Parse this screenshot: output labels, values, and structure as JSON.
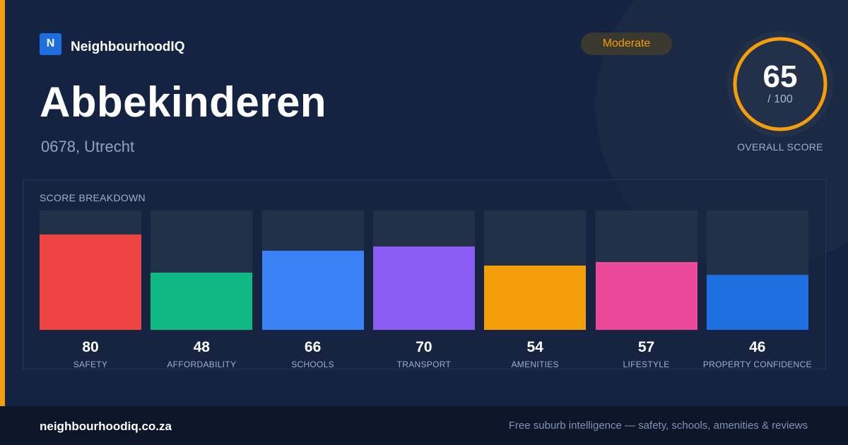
{
  "brand": {
    "logo_letter": "N",
    "name": "NeighbourhoodIQ",
    "accent": "#1d6fe0"
  },
  "suburb": {
    "name": "Abbekinderen",
    "location": "0678, Utrecht"
  },
  "rating_badge": {
    "label": "Moderate",
    "color": "#f59e0b"
  },
  "overall": {
    "score": "65",
    "max": "/ 100",
    "label": "OVERALL SCORE",
    "fraction": 0.65
  },
  "breakdown": {
    "title": "SCORE BREAKDOWN",
    "items": [
      {
        "label": "SAFETY",
        "value": "80",
        "score": 80,
        "color": "#ef4444"
      },
      {
        "label": "AFFORDABILITY",
        "value": "48",
        "score": 48,
        "color": "#10b981"
      },
      {
        "label": "SCHOOLS",
        "value": "66",
        "score": 66,
        "color": "#3b82f6"
      },
      {
        "label": "TRANSPORT",
        "value": "70",
        "score": 70,
        "color": "#8b5cf6"
      },
      {
        "label": "AMENITIES",
        "value": "54",
        "score": 54,
        "color": "#f59e0b"
      },
      {
        "label": "LIFESTYLE",
        "value": "57",
        "score": 57,
        "color": "#ec4899"
      },
      {
        "label": "PROPERTY CONFIDENCE",
        "value": "46",
        "score": 46,
        "color": "#1d6fe0"
      }
    ]
  },
  "footer": {
    "site": "neighbourhoodiq.co.za",
    "tagline": "Free suburb intelligence — safety, schools, amenities & reviews"
  }
}
